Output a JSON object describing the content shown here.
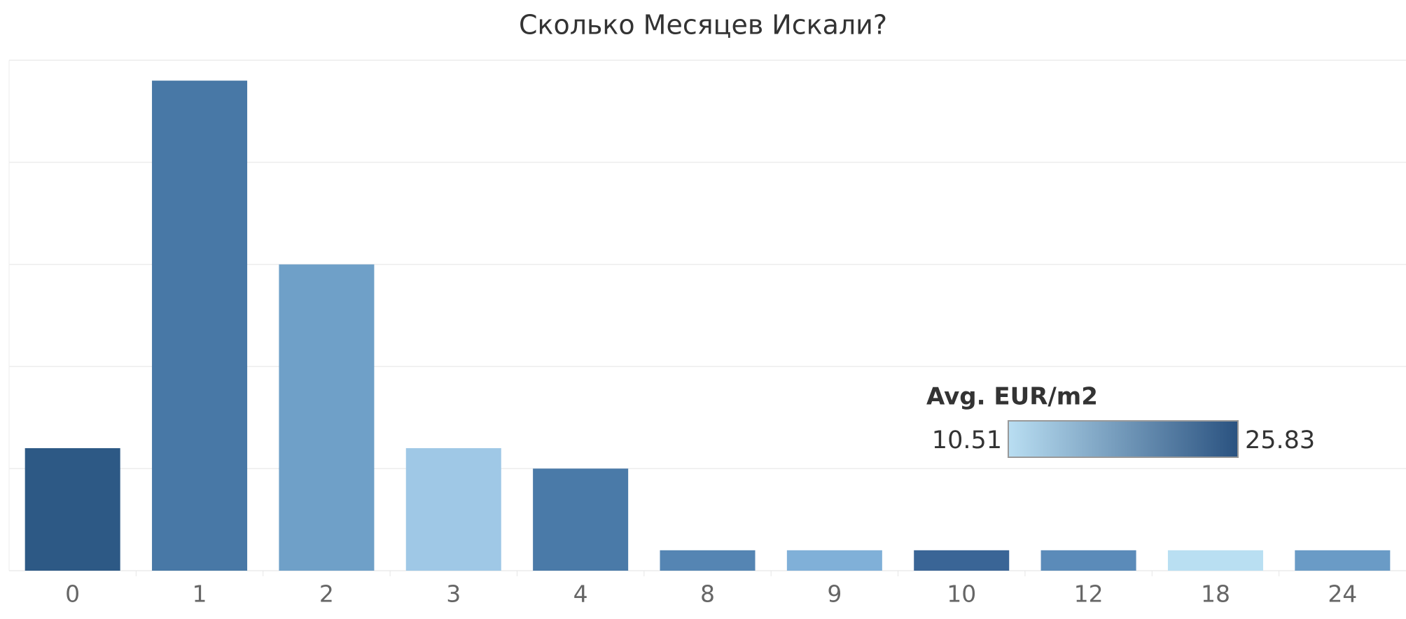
{
  "chart_data": {
    "type": "bar",
    "title": "Сколько Месяцев Искали?",
    "categories": [
      "0",
      "1",
      "2",
      "3",
      "4",
      "8",
      "9",
      "10",
      "12",
      "18",
      "24"
    ],
    "values": [
      6,
      24,
      15,
      6,
      5,
      1,
      1,
      1,
      1,
      1,
      1
    ],
    "colors": [
      "#2d5985",
      "#4878a6",
      "#6fa0c8",
      "#9fc8e6",
      "#4a7aa8",
      "#5585b3",
      "#80b0d8",
      "#3a6596",
      "#5b8bb9",
      "#b9dff2",
      "#6a9bc6"
    ],
    "ylim": [
      0,
      25
    ],
    "yticks": [
      0,
      5,
      10,
      15,
      20,
      25
    ],
    "grid": true,
    "color_scale": {
      "title": "Avg. EUR/m2",
      "min": 10.51,
      "max": 25.83,
      "colors": [
        "#b9def2",
        "#2a5280"
      ]
    }
  }
}
